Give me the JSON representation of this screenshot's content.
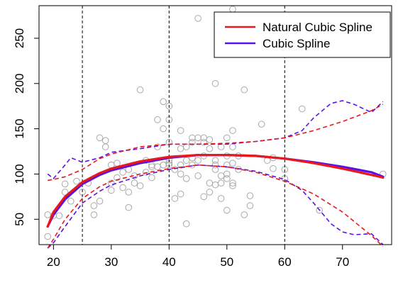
{
  "chart_data": {
    "type": "scatter",
    "xlim": [
      17.5,
      78.5
    ],
    "ylim": [
      22,
      286
    ],
    "x_ticks": [
      20,
      30,
      40,
      50,
      60,
      70
    ],
    "x_tick_labels": [
      "20",
      "30",
      "40",
      "50",
      "60",
      "70"
    ],
    "y_ticks": [
      50,
      100,
      150,
      200,
      250
    ],
    "y_tick_labels": [
      "50",
      "100",
      "150",
      "200",
      "250"
    ],
    "knots": [
      25,
      40,
      60
    ],
    "grid": false,
    "legend_position": "top-right",
    "colors": {
      "natural": "#e8191c",
      "cubic": "#5a10e8",
      "points": "#a8a8a8",
      "knot_lines": "#000000"
    },
    "points": [
      [
        19,
        31
      ],
      [
        19,
        55
      ],
      [
        20,
        54
      ],
      [
        21,
        54
      ],
      [
        22,
        80
      ],
      [
        22,
        89
      ],
      [
        23,
        70
      ],
      [
        24,
        92
      ],
      [
        25,
        80
      ],
      [
        26,
        90
      ],
      [
        27,
        55
      ],
      [
        27,
        65
      ],
      [
        28,
        70
      ],
      [
        28,
        140
      ],
      [
        29,
        137
      ],
      [
        29,
        130
      ],
      [
        30,
        110
      ],
      [
        30,
        90
      ],
      [
        30,
        82
      ],
      [
        31,
        112
      ],
      [
        31,
        96
      ],
      [
        32,
        85
      ],
      [
        32,
        102
      ],
      [
        33,
        105
      ],
      [
        33,
        80
      ],
      [
        33,
        63
      ],
      [
        34,
        90
      ],
      [
        34,
        98
      ],
      [
        35,
        193
      ],
      [
        35,
        87
      ],
      [
        36,
        102
      ],
      [
        36,
        115
      ],
      [
        37,
        110
      ],
      [
        37,
        108
      ],
      [
        37,
        96
      ],
      [
        38,
        108
      ],
      [
        38,
        130
      ],
      [
        38,
        160
      ],
      [
        39,
        110
      ],
      [
        39,
        110
      ],
      [
        39,
        180
      ],
      [
        39,
        150
      ],
      [
        40,
        175
      ],
      [
        40,
        160
      ],
      [
        40,
        135
      ],
      [
        40,
        115
      ],
      [
        40,
        112
      ],
      [
        40,
        110
      ],
      [
        41,
        105
      ],
      [
        41,
        73
      ],
      [
        42,
        128
      ],
      [
        42,
        148
      ],
      [
        42,
        110
      ],
      [
        42,
        100
      ],
      [
        42,
        78
      ],
      [
        43,
        45
      ],
      [
        43,
        95
      ],
      [
        43,
        115
      ],
      [
        43,
        130
      ],
      [
        44,
        135
      ],
      [
        44,
        140
      ],
      [
        44,
        110
      ],
      [
        44,
        118
      ],
      [
        45,
        272
      ],
      [
        45,
        140
      ],
      [
        45,
        115
      ],
      [
        45,
        98
      ],
      [
        46,
        135
      ],
      [
        46,
        120
      ],
      [
        46,
        75
      ],
      [
        46,
        140
      ],
      [
        47,
        128
      ],
      [
        47,
        138
      ],
      [
        47,
        90
      ],
      [
        47,
        80
      ],
      [
        48,
        200
      ],
      [
        48,
        115
      ],
      [
        48,
        110
      ],
      [
        48,
        105
      ],
      [
        48,
        88
      ],
      [
        49,
        130
      ],
      [
        49,
        98
      ],
      [
        49,
        90
      ],
      [
        49,
        73
      ],
      [
        50,
        140
      ],
      [
        50,
        120
      ],
      [
        50,
        110
      ],
      [
        50,
        100
      ],
      [
        50,
        95
      ],
      [
        50,
        60
      ],
      [
        51,
        148
      ],
      [
        51,
        130
      ],
      [
        51,
        112
      ],
      [
        51,
        90
      ],
      [
        51,
        87
      ],
      [
        51,
        282
      ],
      [
        52,
        120
      ],
      [
        52,
        105
      ],
      [
        53,
        193
      ],
      [
        53,
        55
      ],
      [
        54,
        76
      ],
      [
        54,
        65
      ],
      [
        56,
        155
      ],
      [
        57,
        115
      ],
      [
        58,
        118
      ],
      [
        58,
        106
      ],
      [
        60,
        95
      ],
      [
        60,
        105
      ],
      [
        63,
        172
      ],
      [
        66,
        60
      ],
      [
        77,
        100
      ]
    ],
    "series": [
      {
        "name": "Natural Cubic Spline",
        "fit": [
          [
            19,
            42
          ],
          [
            20,
            58
          ],
          [
            22,
            75
          ],
          [
            25,
            91
          ],
          [
            28,
            101
          ],
          [
            30,
            106
          ],
          [
            35,
            114
          ],
          [
            40,
            119
          ],
          [
            45,
            121
          ],
          [
            50,
            121
          ],
          [
            55,
            120
          ],
          [
            60,
            117
          ],
          [
            65,
            112
          ],
          [
            70,
            106
          ],
          [
            75,
            99
          ],
          [
            77,
            96
          ]
        ],
        "upper": [
          [
            19,
            93
          ],
          [
            20,
            94
          ],
          [
            22,
            97
          ],
          [
            25,
            105
          ],
          [
            28,
            117
          ],
          [
            30,
            122
          ],
          [
            35,
            130
          ],
          [
            40,
            133
          ],
          [
            45,
            133
          ],
          [
            50,
            134
          ],
          [
            55,
            136
          ],
          [
            60,
            140
          ],
          [
            65,
            148
          ],
          [
            70,
            158
          ],
          [
            75,
            170
          ],
          [
            77,
            177
          ]
        ],
        "lower": [
          [
            19,
            18
          ],
          [
            20,
            28
          ],
          [
            22,
            50
          ],
          [
            25,
            73
          ],
          [
            28,
            86
          ],
          [
            30,
            92
          ],
          [
            35,
            100
          ],
          [
            40,
            106
          ],
          [
            45,
            110
          ],
          [
            50,
            108
          ],
          [
            55,
            102
          ],
          [
            60,
            92
          ],
          [
            65,
            78
          ],
          [
            70,
            58
          ],
          [
            75,
            32
          ],
          [
            77,
            20
          ]
        ]
      },
      {
        "name": "Cubic Spline",
        "fit": [
          [
            19,
            42
          ],
          [
            20,
            55
          ],
          [
            22,
            72
          ],
          [
            25,
            89
          ],
          [
            28,
            99
          ],
          [
            30,
            104
          ],
          [
            35,
            112
          ],
          [
            40,
            118
          ],
          [
            45,
            121
          ],
          [
            50,
            121
          ],
          [
            55,
            120
          ],
          [
            60,
            117
          ],
          [
            65,
            113
          ],
          [
            70,
            108
          ],
          [
            75,
            102
          ],
          [
            77,
            97
          ]
        ],
        "upper": [
          [
            19,
            100
          ],
          [
            20,
            95
          ],
          [
            22,
            110
          ],
          [
            23,
            118
          ],
          [
            25,
            113
          ],
          [
            28,
            118
          ],
          [
            30,
            124
          ],
          [
            35,
            128
          ],
          [
            40,
            133
          ],
          [
            45,
            133
          ],
          [
            50,
            133
          ],
          [
            55,
            136
          ],
          [
            60,
            140
          ],
          [
            63,
            148
          ],
          [
            65,
            162
          ],
          [
            68,
            178
          ],
          [
            70,
            181
          ],
          [
            72,
            177
          ],
          [
            75,
            168
          ],
          [
            77,
            180
          ]
        ],
        "lower": [
          [
            19,
            18
          ],
          [
            20,
            24
          ],
          [
            22,
            42
          ],
          [
            25,
            68
          ],
          [
            28,
            81
          ],
          [
            30,
            88
          ],
          [
            35,
            98
          ],
          [
            40,
            105
          ],
          [
            45,
            110
          ],
          [
            50,
            108
          ],
          [
            55,
            103
          ],
          [
            60,
            94
          ],
          [
            63,
            82
          ],
          [
            65,
            68
          ],
          [
            68,
            45
          ],
          [
            70,
            36
          ],
          [
            72,
            33
          ],
          [
            75,
            34
          ],
          [
            77,
            22
          ]
        ]
      }
    ]
  }
}
